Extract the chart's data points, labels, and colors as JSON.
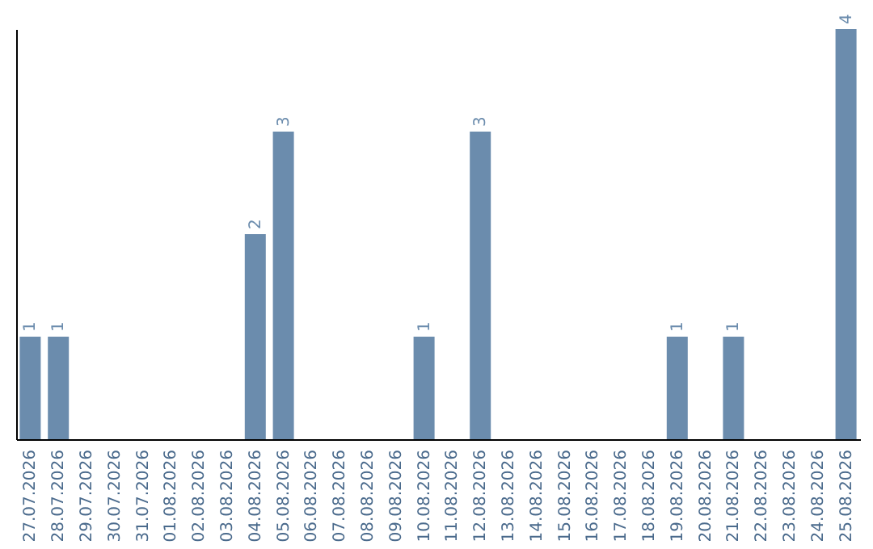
{
  "chart_data": {
    "type": "bar",
    "categories": [
      "27.07.2026",
      "28.07.2026",
      "29.07.2026",
      "30.07.2026",
      "31.07.2026",
      "01.08.2026",
      "02.08.2026",
      "03.08.2026",
      "04.08.2026",
      "05.08.2026",
      "06.08.2026",
      "07.08.2026",
      "08.08.2026",
      "09.08.2026",
      "10.08.2026",
      "11.08.2026",
      "12.08.2026",
      "13.08.2026",
      "14.08.2026",
      "15.08.2026",
      "16.08.2026",
      "17.08.2026",
      "18.08.2026",
      "19.08.2026",
      "20.08.2026",
      "21.08.2026",
      "22.08.2026",
      "23.08.2026",
      "24.08.2026",
      "25.08.2026"
    ],
    "values": [
      1,
      1,
      0,
      0,
      0,
      0,
      0,
      0,
      2,
      3,
      0,
      0,
      0,
      0,
      1,
      0,
      3,
      0,
      0,
      0,
      0,
      0,
      0,
      1,
      0,
      1,
      0,
      0,
      0,
      4
    ],
    "value_labels": [
      "1",
      "1",
      null,
      null,
      null,
      null,
      null,
      null,
      "2",
      "3",
      null,
      null,
      null,
      null,
      "1",
      null,
      "3",
      null,
      null,
      null,
      null,
      null,
      null,
      "1",
      null,
      "1",
      null,
      null,
      null,
      "4"
    ],
    "color": "#6b8cad",
    "tick_labels": "x"
  }
}
